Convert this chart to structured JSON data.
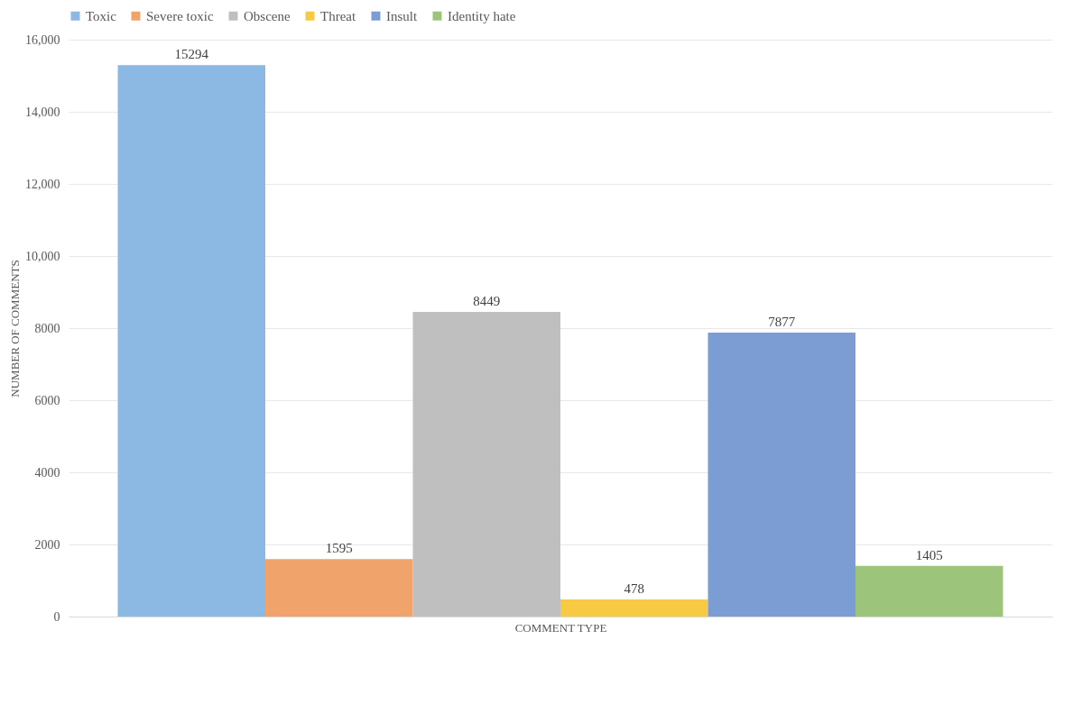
{
  "chart_data": {
    "type": "bar",
    "xlabel": "COMMENT TYPE",
    "ylabel": "NUMBER OF COMMENTS",
    "categories": [
      null
    ],
    "series": [
      {
        "name": "Toxic",
        "color": "#8cb9e3",
        "values": [
          15294
        ]
      },
      {
        "name": "Severe toxic",
        "color": "#f0a46c",
        "values": [
          1595
        ]
      },
      {
        "name": "Obscene",
        "color": "#bfbfbf",
        "values": [
          8449
        ]
      },
      {
        "name": "Threat",
        "color": "#f8c942",
        "values": [
          478
        ]
      },
      {
        "name": "Insult",
        "color": "#7b9dd3",
        "values": [
          7877
        ]
      },
      {
        "name": "Identity hate",
        "color": "#9cc47b",
        "values": [
          1405
        ]
      }
    ],
    "ylim": [
      0,
      16000
    ],
    "yticks": [
      0,
      2000,
      4000,
      6000,
      8000,
      {
        "value": 10000,
        "label": "10,000"
      },
      {
        "value": 12000,
        "label": "12,000"
      },
      {
        "value": 14000,
        "label": "14,000"
      },
      {
        "value": 16000,
        "label": "16,000"
      }
    ],
    "grid": "y",
    "legend": "top",
    "data_labels": true
  }
}
